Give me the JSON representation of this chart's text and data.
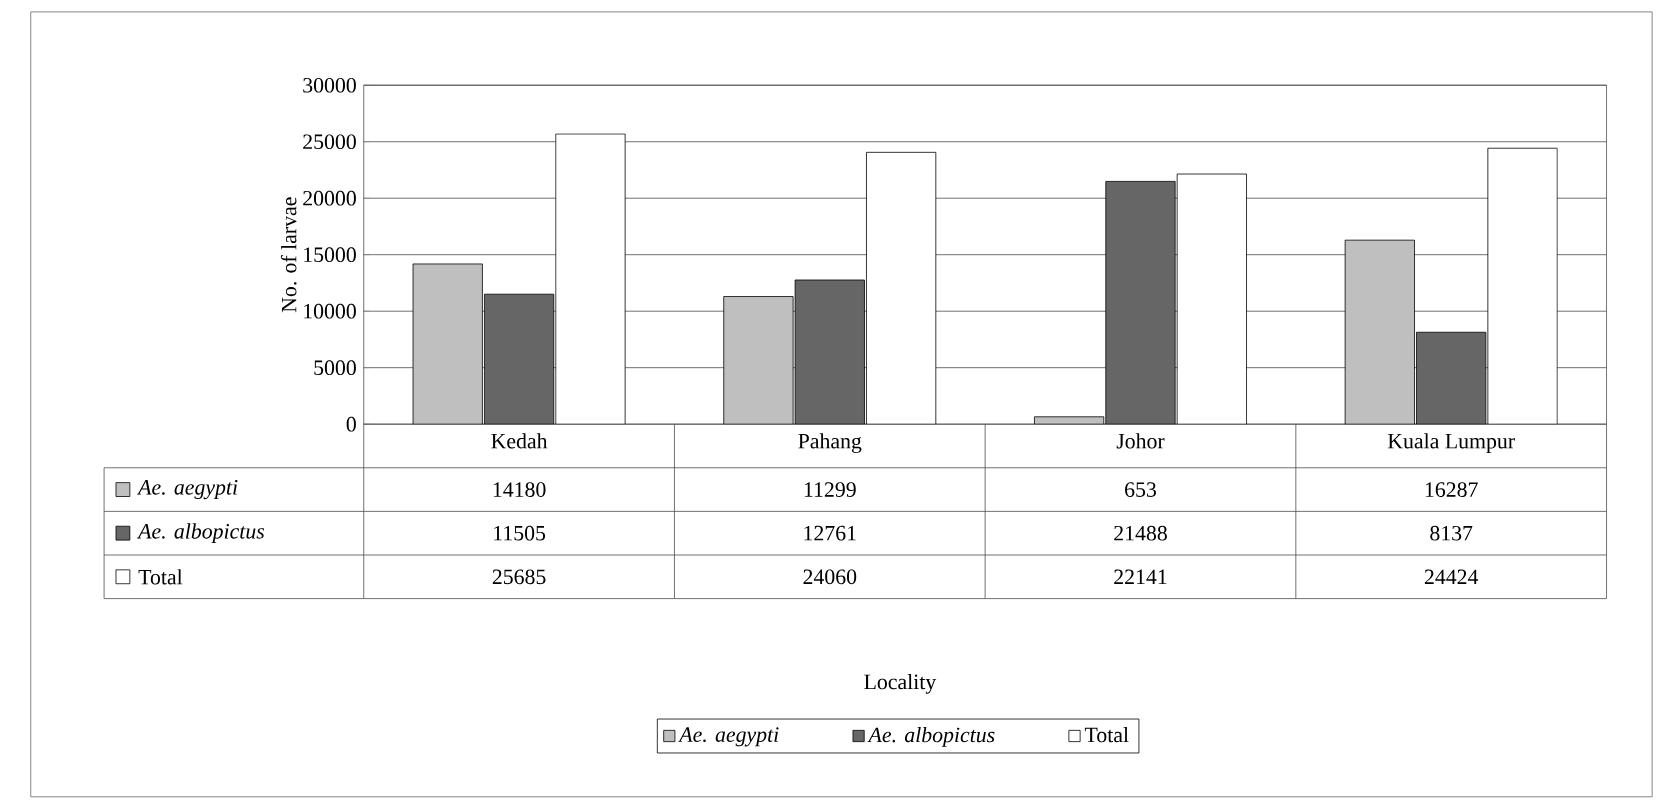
{
  "chart_data": {
    "type": "bar",
    "annotations": [
      "Locality"
    ],
    "ylabel": "No. of larvae",
    "categories": [
      "Kedah",
      "Pahang",
      "Johor",
      "Kuala Lumpur"
    ],
    "series": [
      {
        "name": "*Ae. aegypti*",
        "color": "#bfbfbf",
        "values": [
          14180,
          11299,
          653,
          16287
        ]
      },
      {
        "name": "*Ae. albopictus*",
        "color": "#666666",
        "values": [
          11505,
          12761,
          21488,
          8137
        ]
      },
      {
        "name": "Total",
        "color": "#ffffff",
        "values": [
          25685,
          24060,
          22141,
          24424
        ]
      }
    ],
    "ylim": [
      0,
      30000
    ],
    "yticks": [
      0,
      5000,
      10000,
      15000,
      20000,
      25000,
      30000
    ],
    "grid": "y",
    "legend": "bottom",
    "data_labels": true
  }
}
